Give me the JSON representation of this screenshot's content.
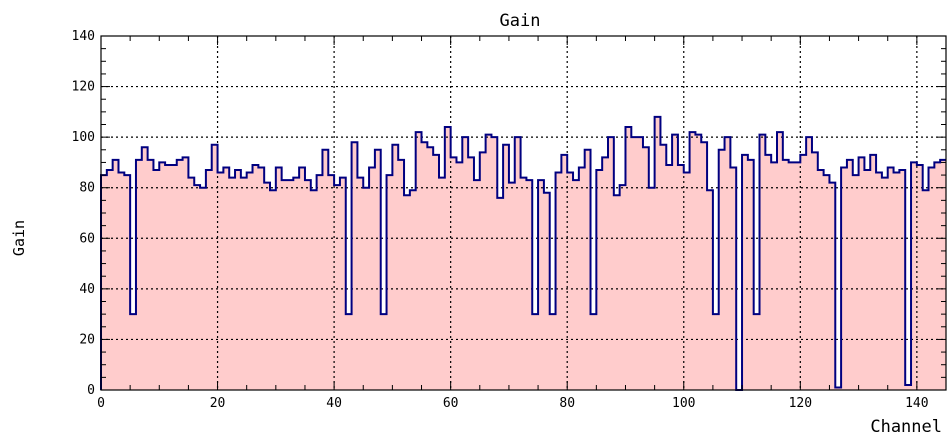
{
  "chart_data": {
    "type": "histogram",
    "title": "Gain",
    "xlabel": "Channel",
    "ylabel": "Gain",
    "xlim": [
      0,
      145
    ],
    "ylim": [
      0,
      140
    ],
    "xticks": [
      "0",
      "20",
      "40",
      "60",
      "80",
      "100",
      "120",
      "140"
    ],
    "yticks": [
      "0",
      "20",
      "40",
      "60",
      "80",
      "100",
      "120",
      "140"
    ],
    "grid": true,
    "fill_color": "#ffcccc",
    "line_color": "#000080",
    "bin_width": 1,
    "values": [
      85,
      87,
      91,
      86,
      85,
      30,
      91,
      96,
      91,
      87,
      90,
      89,
      89,
      91,
      92,
      84,
      81,
      80,
      87,
      97,
      86,
      88,
      84,
      87,
      84,
      86,
      89,
      88,
      82,
      79,
      88,
      83,
      83,
      84,
      88,
      83,
      79,
      85,
      95,
      85,
      81,
      84,
      30,
      98,
      84,
      80,
      88,
      95,
      30,
      85,
      97,
      91,
      77,
      79,
      102,
      98,
      96,
      93,
      84,
      104,
      92,
      90,
      100,
      92,
      83,
      94,
      101,
      100,
      76,
      97,
      82,
      100,
      84,
      83,
      30,
      83,
      78,
      30,
      86,
      93,
      86,
      83,
      88,
      95,
      30,
      87,
      92,
      100,
      77,
      81,
      104,
      100,
      100,
      96,
      80,
      108,
      97,
      89,
      101,
      89,
      86,
      102,
      101,
      98,
      79,
      30,
      95,
      100,
      88,
      0,
      93,
      91,
      30,
      101,
      93,
      90,
      102,
      91,
      90,
      90,
      93,
      100,
      94,
      87,
      85,
      82,
      1,
      88,
      91,
      85,
      92,
      87,
      93,
      86,
      84,
      88,
      86,
      87,
      2,
      90,
      89,
      79,
      88,
      90,
      91
    ]
  }
}
